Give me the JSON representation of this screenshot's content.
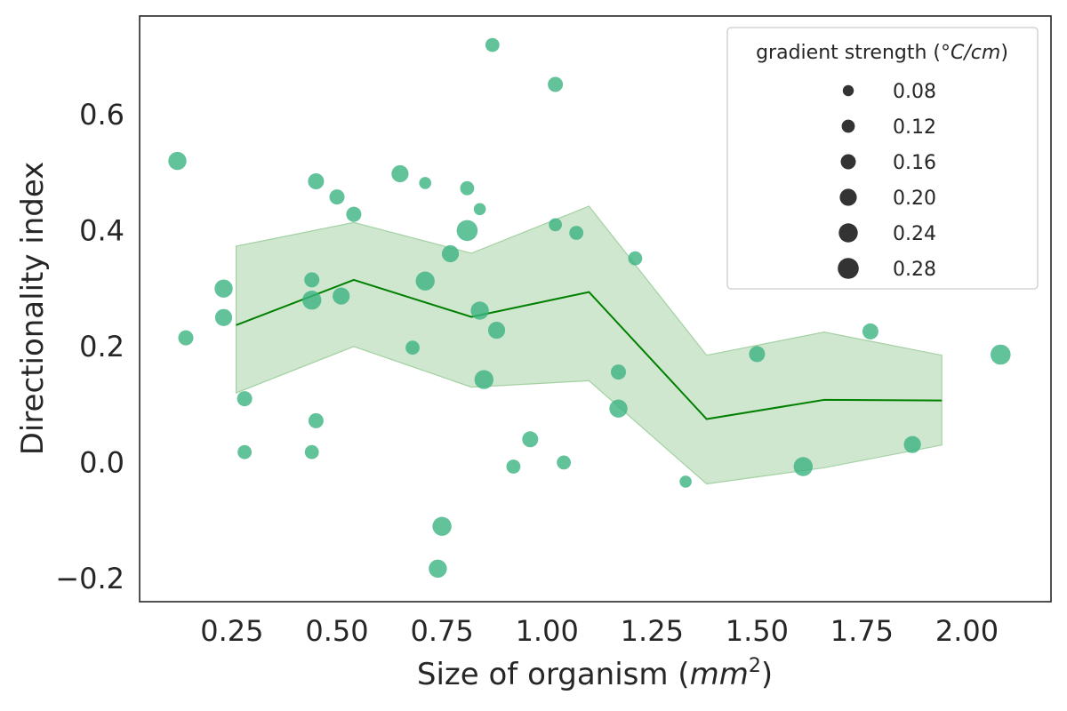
{
  "chart_data": {
    "type": "scatter",
    "title": "",
    "xlabel": "Size of organism ($mm^2$)",
    "xlabel_parts": {
      "text": "Size of organism (",
      "math_base": "mm",
      "math_sup": "2",
      "close": ")"
    },
    "ylabel": "Directionality index",
    "xlim": [
      0.03,
      2.2
    ],
    "ylim": [
      -0.24,
      0.77
    ],
    "x_ticks": [
      0.25,
      0.5,
      0.75,
      1.0,
      1.25,
      1.5,
      1.75,
      2.0
    ],
    "x_tick_labels": [
      "0.25",
      "0.50",
      "0.75",
      "1.00",
      "1.25",
      "1.50",
      "1.75",
      "2.00"
    ],
    "y_ticks": [
      -0.2,
      0.0,
      0.2,
      0.4,
      0.6
    ],
    "y_tick_labels": [
      "−0.2",
      "0.0",
      "0.2",
      "0.4",
      "0.6"
    ],
    "grid": false,
    "colors": {
      "points": "#3bb381",
      "line": "#008000",
      "band": "#94c994",
      "axes": "#262626",
      "legend_marker": "#333333"
    },
    "points": [
      {
        "x": 0.12,
        "y": 0.52,
        "s": 0.22
      },
      {
        "x": 0.14,
        "y": 0.215,
        "s": 0.16
      },
      {
        "x": 0.23,
        "y": 0.3,
        "s": 0.22
      },
      {
        "x": 0.23,
        "y": 0.25,
        "s": 0.2
      },
      {
        "x": 0.28,
        "y": 0.11,
        "s": 0.16
      },
      {
        "x": 0.28,
        "y": 0.018,
        "s": 0.14
      },
      {
        "x": 0.44,
        "y": 0.018,
        "s": 0.14
      },
      {
        "x": 0.44,
        "y": 0.315,
        "s": 0.16
      },
      {
        "x": 0.44,
        "y": 0.28,
        "s": 0.24
      },
      {
        "x": 0.45,
        "y": 0.485,
        "s": 0.18
      },
      {
        "x": 0.45,
        "y": 0.072,
        "s": 0.16
      },
      {
        "x": 0.5,
        "y": 0.458,
        "s": 0.16
      },
      {
        "x": 0.51,
        "y": 0.287,
        "s": 0.2
      },
      {
        "x": 0.54,
        "y": 0.428,
        "s": 0.16
      },
      {
        "x": 0.65,
        "y": 0.498,
        "s": 0.2
      },
      {
        "x": 0.68,
        "y": 0.198,
        "s": 0.14
      },
      {
        "x": 0.71,
        "y": 0.482,
        "s": 0.1
      },
      {
        "x": 0.71,
        "y": 0.313,
        "s": 0.24
      },
      {
        "x": 0.74,
        "y": -0.183,
        "s": 0.22
      },
      {
        "x": 0.75,
        "y": -0.11,
        "s": 0.24
      },
      {
        "x": 0.77,
        "y": 0.36,
        "s": 0.2
      },
      {
        "x": 0.81,
        "y": 0.473,
        "s": 0.14
      },
      {
        "x": 0.81,
        "y": 0.4,
        "s": 0.28
      },
      {
        "x": 0.84,
        "y": 0.262,
        "s": 0.22
      },
      {
        "x": 0.84,
        "y": 0.437,
        "s": 0.1
      },
      {
        "x": 0.85,
        "y": 0.143,
        "s": 0.24
      },
      {
        "x": 0.87,
        "y": 0.72,
        "s": 0.14
      },
      {
        "x": 0.88,
        "y": 0.228,
        "s": 0.2
      },
      {
        "x": 0.92,
        "y": -0.007,
        "s": 0.14
      },
      {
        "x": 0.96,
        "y": 0.04,
        "s": 0.18
      },
      {
        "x": 1.02,
        "y": 0.41,
        "s": 0.12
      },
      {
        "x": 1.02,
        "y": 0.652,
        "s": 0.16
      },
      {
        "x": 1.04,
        "y": 0.0,
        "s": 0.14
      },
      {
        "x": 1.07,
        "y": 0.396,
        "s": 0.14
      },
      {
        "x": 1.17,
        "y": 0.156,
        "s": 0.16
      },
      {
        "x": 1.17,
        "y": 0.093,
        "s": 0.22
      },
      {
        "x": 1.21,
        "y": 0.352,
        "s": 0.14
      },
      {
        "x": 1.33,
        "y": -0.033,
        "s": 0.1
      },
      {
        "x": 1.5,
        "y": 0.187,
        "s": 0.18
      },
      {
        "x": 1.61,
        "y": -0.007,
        "s": 0.24
      },
      {
        "x": 1.77,
        "y": 0.226,
        "s": 0.18
      },
      {
        "x": 1.87,
        "y": 0.031,
        "s": 0.2
      },
      {
        "x": 2.08,
        "y": 0.186,
        "s": 0.26
      }
    ],
    "trend_line": {
      "x": [
        0.26,
        0.54,
        0.82,
        1.1,
        1.38,
        1.66,
        1.94
      ],
      "y": [
        0.237,
        0.315,
        0.251,
        0.294,
        0.075,
        0.108,
        0.107
      ],
      "upper": [
        0.373,
        0.414,
        0.361,
        0.442,
        0.185,
        0.225,
        0.185
      ],
      "lower": [
        0.12,
        0.2,
        0.13,
        0.141,
        -0.037,
        -0.009,
        0.03
      ]
    },
    "legend": {
      "title_text": "gradient strength (",
      "title_math": "°C/cm",
      "title_close": ")",
      "placement": "top-right",
      "entries": [
        {
          "label": "0.08",
          "s": 0.08
        },
        {
          "label": "0.12",
          "s": 0.12
        },
        {
          "label": "0.16",
          "s": 0.16
        },
        {
          "label": "0.20",
          "s": 0.2
        },
        {
          "label": "0.24",
          "s": 0.24
        },
        {
          "label": "0.28",
          "s": 0.28
        }
      ]
    }
  }
}
